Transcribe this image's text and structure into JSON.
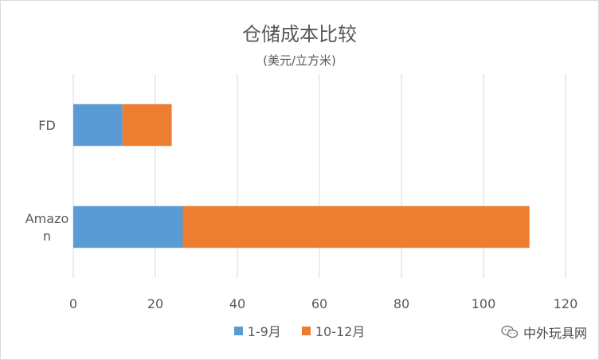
{
  "chart_data": {
    "type": "bar",
    "orientation": "horizontal",
    "stacked": true,
    "title": "仓储成本比较",
    "subtitle": "(美元/立方米)",
    "categories": [
      "FD",
      "Amazon"
    ],
    "category_labels": [
      [
        "FD"
      ],
      [
        "Amazo",
        "n"
      ]
    ],
    "series": [
      {
        "name": "1-9月",
        "values": [
          12,
          26.7
        ],
        "color": "#5b9bd5"
      },
      {
        "name": "10-12月",
        "values": [
          12,
          84.5
        ],
        "color": "#ed7d31"
      }
    ],
    "xlim": [
      0,
      120
    ],
    "xticks": [
      0,
      20,
      40,
      60,
      80,
      100,
      120
    ],
    "grid": true,
    "legend_position": "bottom",
    "xlabel": "",
    "ylabel": ""
  },
  "watermark": {
    "text": "中外玩具网",
    "icon": "wechat-icon"
  }
}
